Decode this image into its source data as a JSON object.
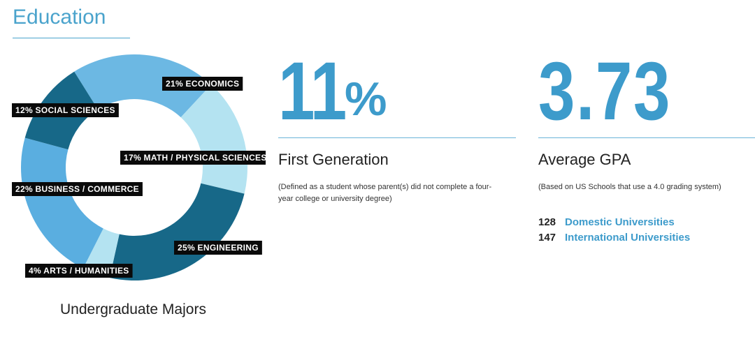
{
  "section": {
    "title": "Education"
  },
  "chart_data": {
    "type": "pie",
    "variant": "donut",
    "title": "",
    "caption": "Undergraduate Majors",
    "slices": [
      {
        "label": "21% ECONOMICS",
        "value": 21,
        "color": "#6cb8e3"
      },
      {
        "label": "17% MATH / PHYSICAL SCIENCES",
        "value": 17,
        "color": "#b4e3f1"
      },
      {
        "label": "25% ENGINEERING",
        "value": 25,
        "color": "#176888"
      },
      {
        "label": "4% ARTS / HUMANITIES",
        "value": 4,
        "color": "#b4e3f1"
      },
      {
        "label": "22% BUSINESS / COMMERCE",
        "value": 22,
        "color": "#5aaee0"
      },
      {
        "label": "12% SOCIAL SCIENCES",
        "value": 12,
        "color": "#176888"
      }
    ]
  },
  "stats": {
    "first_generation": {
      "number": "11",
      "suffix": "%",
      "heading": "First Generation",
      "note_line1": "(Defined as a student whose parent(s) did not complete a four-",
      "note_line2": "year college or university degree)"
    },
    "gpa": {
      "number": "3.73",
      "heading": "Average GPA",
      "note": "(Based on US Schools that use a 4.0 grading system)"
    }
  },
  "universities": [
    {
      "count": "128",
      "label": "Domestic Universities"
    },
    {
      "count": "147",
      "label": "International Universities"
    }
  ],
  "colors": {
    "accent": "#3d9bcb",
    "title": "#4aa3cc"
  }
}
